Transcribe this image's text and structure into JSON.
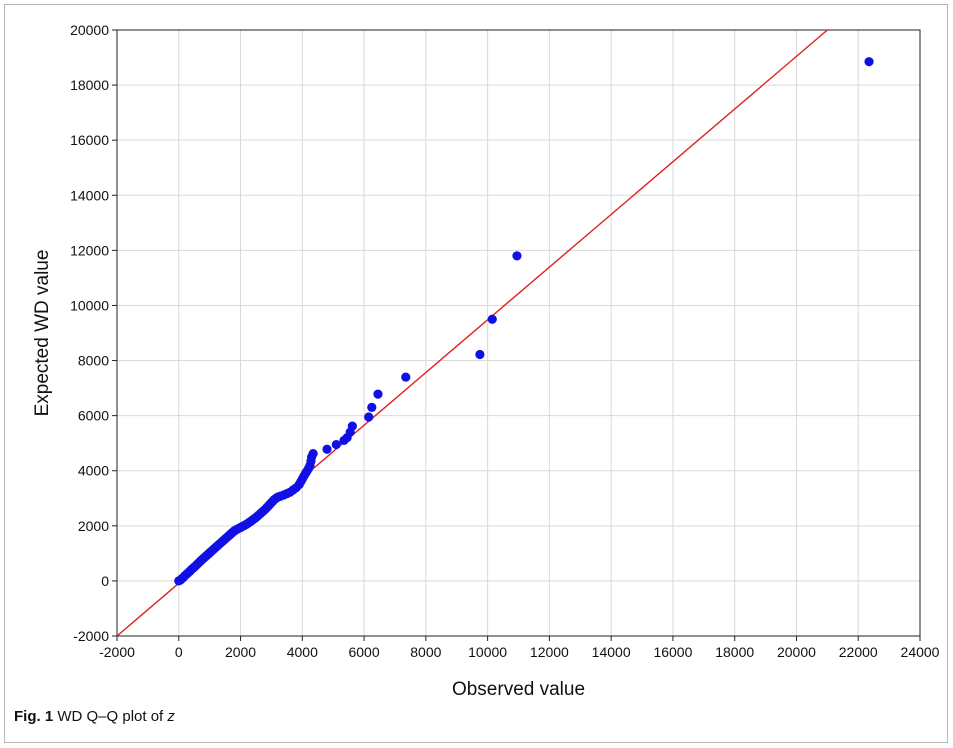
{
  "caption": {
    "label": "Fig. 1",
    "text": "WD Q–Q plot of",
    "variable": "z"
  },
  "chart_data": {
    "type": "scatter",
    "title": "",
    "xlabel": "Observed value",
    "ylabel": "Expected WD value",
    "xlim": [
      -2000,
      24000
    ],
    "ylim": [
      -2000,
      20000
    ],
    "xticks": [
      -2000,
      0,
      2000,
      4000,
      6000,
      8000,
      10000,
      12000,
      14000,
      16000,
      18000,
      20000,
      22000,
      24000
    ],
    "yticks": [
      -2000,
      0,
      2000,
      4000,
      6000,
      8000,
      10000,
      12000,
      14000,
      16000,
      18000,
      20000
    ],
    "grid": true,
    "colors": {
      "points": "#1010e6",
      "reference_line": "#e02020",
      "grid": "#d9d9d9"
    },
    "reference_line": {
      "x": [
        -2000,
        21000
      ],
      "y": [
        -2000,
        20000
      ]
    },
    "points": [
      [
        0,
        0
      ],
      [
        50,
        30
      ],
      [
        100,
        80
      ],
      [
        150,
        130
      ],
      [
        200,
        190
      ],
      [
        250,
        240
      ],
      [
        300,
        290
      ],
      [
        350,
        340
      ],
      [
        400,
        400
      ],
      [
        450,
        450
      ],
      [
        500,
        500
      ],
      [
        550,
        550
      ],
      [
        600,
        610
      ],
      [
        650,
        660
      ],
      [
        700,
        720
      ],
      [
        750,
        770
      ],
      [
        800,
        820
      ],
      [
        850,
        870
      ],
      [
        900,
        920
      ],
      [
        950,
        970
      ],
      [
        1000,
        1020
      ],
      [
        1050,
        1070
      ],
      [
        1100,
        1120
      ],
      [
        1150,
        1170
      ],
      [
        1200,
        1220
      ],
      [
        1250,
        1270
      ],
      [
        1300,
        1320
      ],
      [
        1350,
        1370
      ],
      [
        1400,
        1420
      ],
      [
        1450,
        1470
      ],
      [
        1500,
        1520
      ],
      [
        1550,
        1570
      ],
      [
        1600,
        1620
      ],
      [
        1650,
        1670
      ],
      [
        1700,
        1720
      ],
      [
        1750,
        1770
      ],
      [
        1800,
        1820
      ],
      [
        1850,
        1850
      ],
      [
        1900,
        1880
      ],
      [
        1950,
        1910
      ],
      [
        2000,
        1940
      ],
      [
        2050,
        1970
      ],
      [
        2100,
        2000
      ],
      [
        2150,
        2030
      ],
      [
        2200,
        2060
      ],
      [
        2250,
        2100
      ],
      [
        2300,
        2140
      ],
      [
        2350,
        2180
      ],
      [
        2400,
        2220
      ],
      [
        2450,
        2260
      ],
      [
        2500,
        2300
      ],
      [
        2550,
        2350
      ],
      [
        2600,
        2400
      ],
      [
        2650,
        2450
      ],
      [
        2700,
        2500
      ],
      [
        2750,
        2550
      ],
      [
        2800,
        2600
      ],
      [
        2850,
        2660
      ],
      [
        2900,
        2720
      ],
      [
        2950,
        2780
      ],
      [
        3000,
        2840
      ],
      [
        3050,
        2900
      ],
      [
        3100,
        2960
      ],
      [
        3150,
        3000
      ],
      [
        3200,
        3040
      ],
      [
        3250,
        3060
      ],
      [
        3300,
        3080
      ],
      [
        3400,
        3120
      ],
      [
        3500,
        3170
      ],
      [
        3600,
        3220
      ],
      [
        3700,
        3300
      ],
      [
        3800,
        3380
      ],
      [
        3900,
        3500
      ],
      [
        3950,
        3600
      ],
      [
        4000,
        3700
      ],
      [
        4050,
        3800
      ],
      [
        4100,
        3900
      ],
      [
        4150,
        3980
      ],
      [
        4200,
        4080
      ],
      [
        4250,
        4200
      ],
      [
        4280,
        4350
      ],
      [
        4300,
        4500
      ],
      [
        4350,
        4620
      ],
      [
        4800,
        4780
      ],
      [
        5100,
        4950
      ],
      [
        5350,
        5100
      ],
      [
        5450,
        5200
      ],
      [
        5550,
        5400
      ],
      [
        5620,
        5620
      ],
      [
        6150,
        5950
      ],
      [
        6250,
        6300
      ],
      [
        6450,
        6780
      ],
      [
        7350,
        7400
      ],
      [
        9750,
        8220
      ],
      [
        10150,
        9500
      ],
      [
        10950,
        11800
      ],
      [
        22350,
        18850
      ]
    ]
  }
}
